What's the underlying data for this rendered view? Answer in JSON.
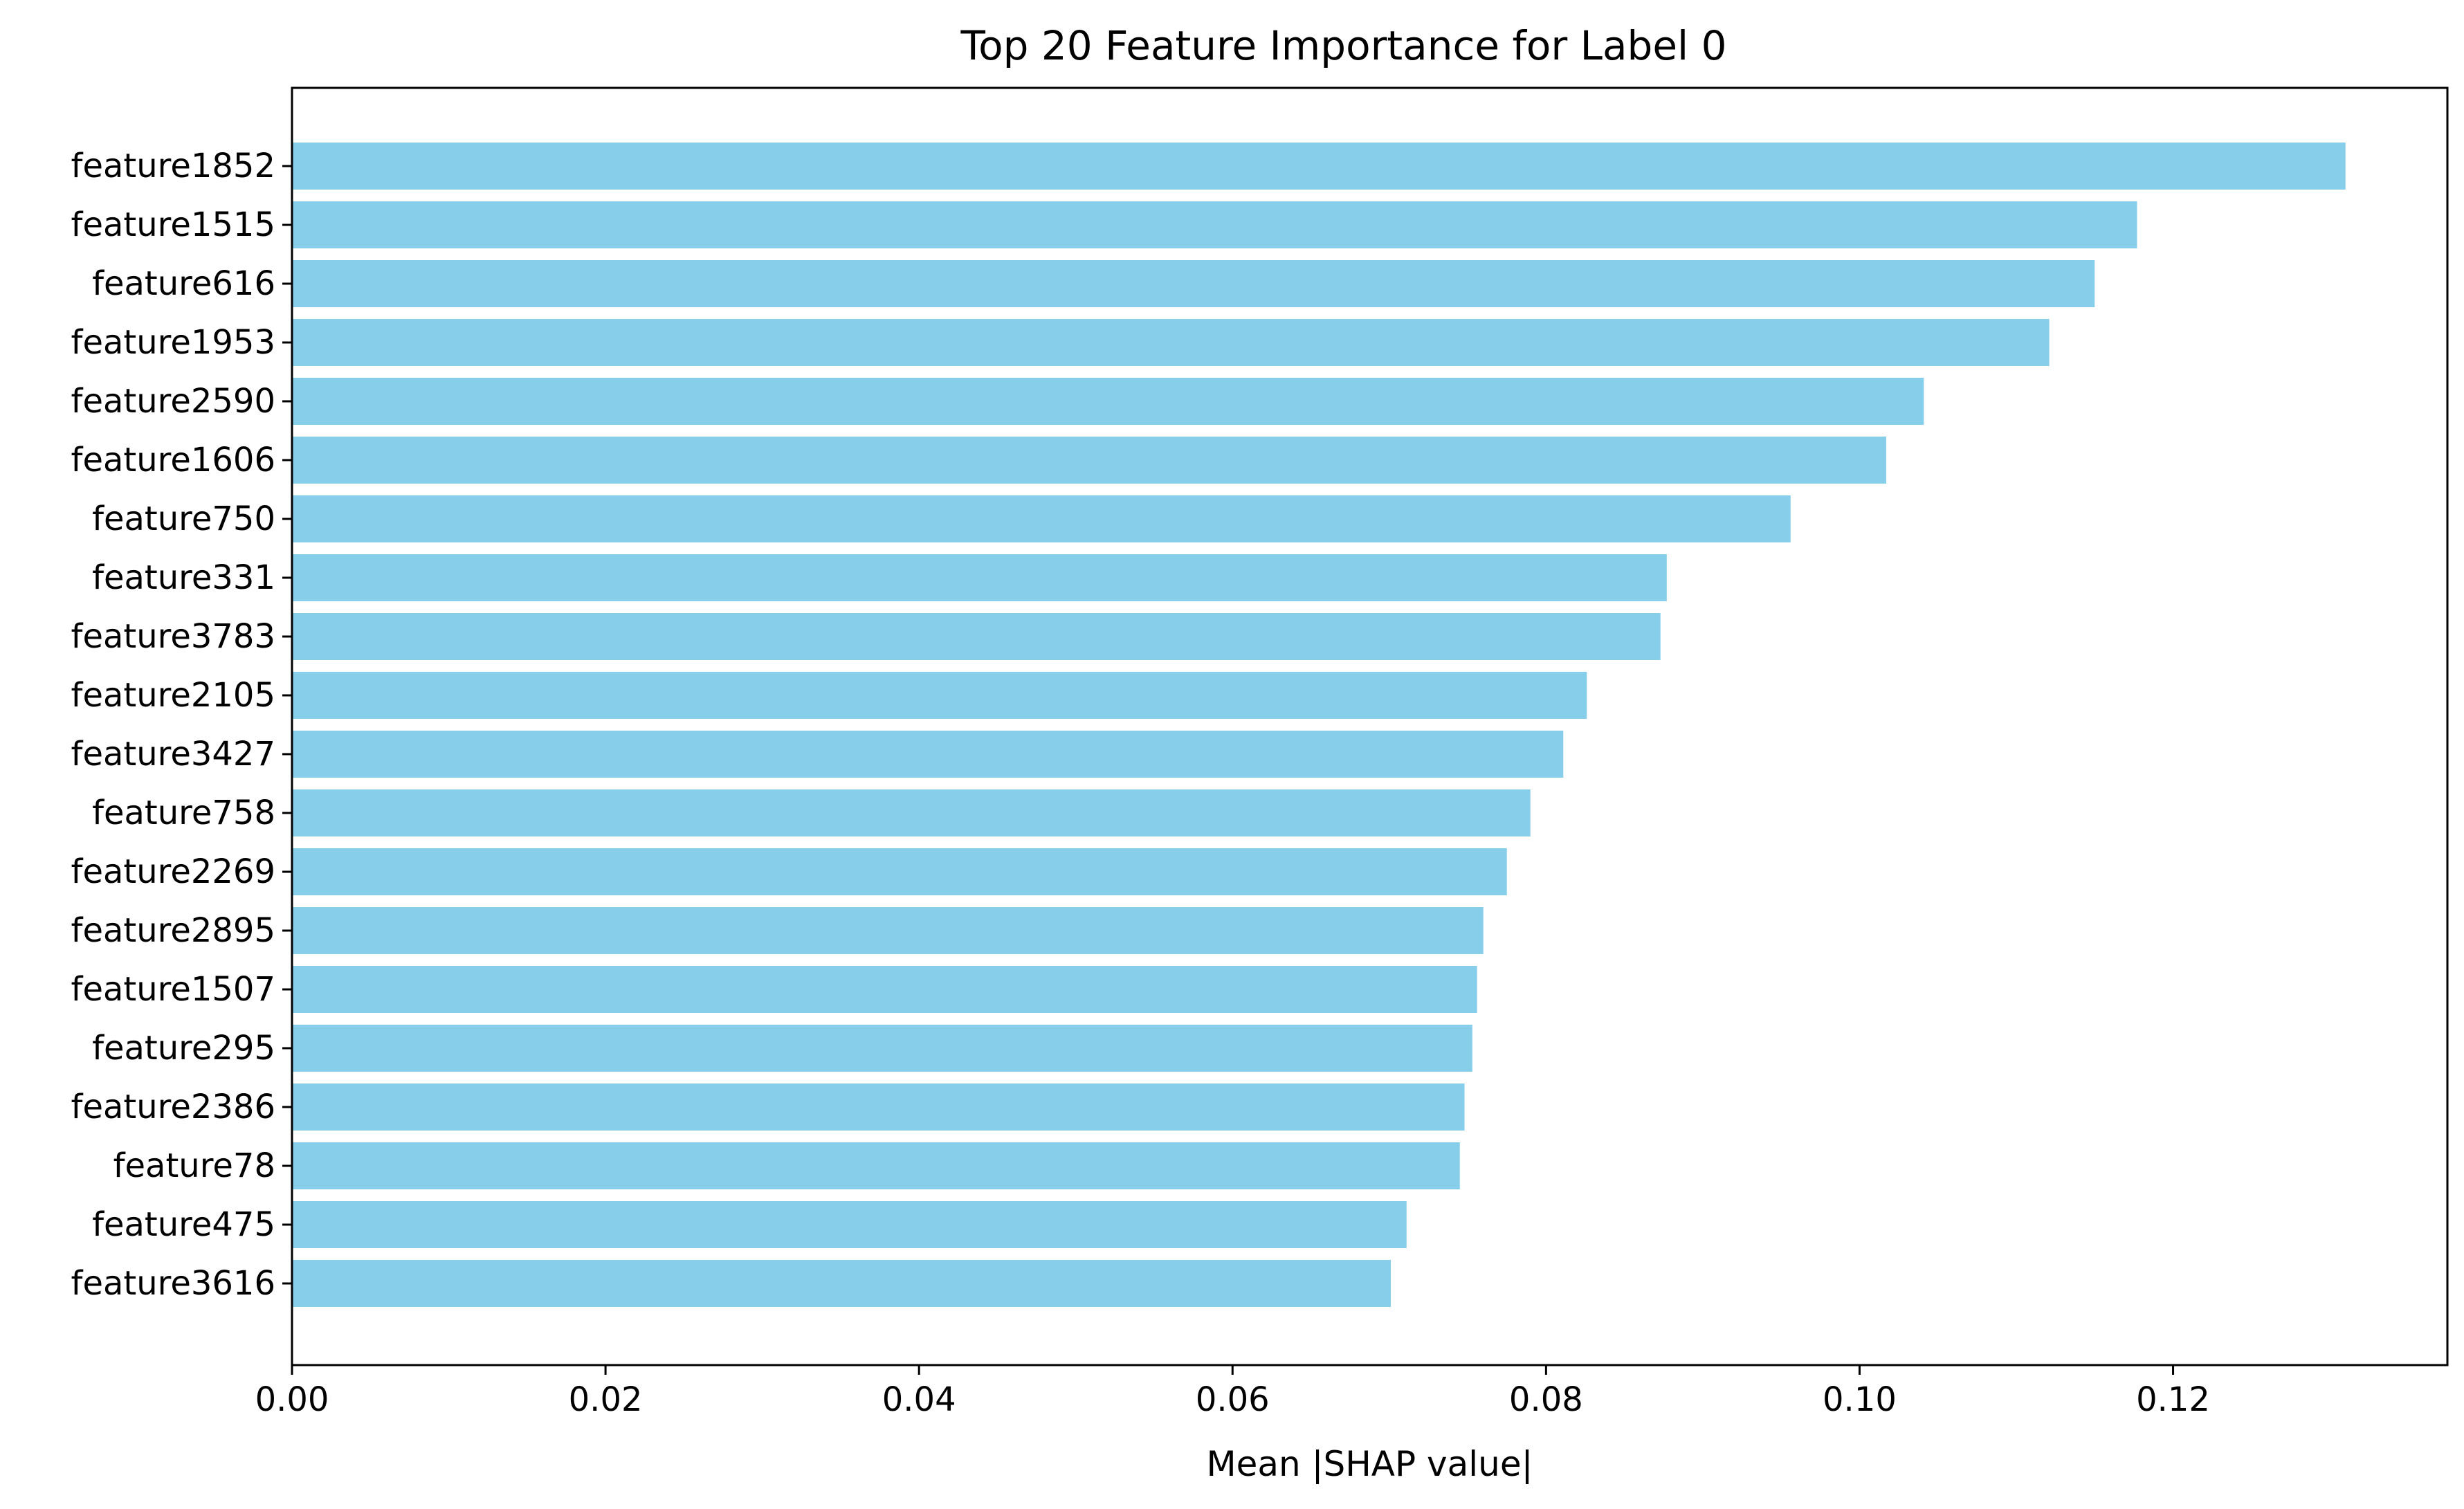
{
  "chart_data": {
    "type": "bar",
    "orientation": "horizontal",
    "title": "Top 20 Feature Importance for Label 0",
    "xlabel": "Mean |SHAP value|",
    "ylabel": "",
    "xlim": [
      0,
      0.1375
    ],
    "xticks": [
      0.0,
      0.02,
      0.04,
      0.06,
      0.08,
      0.1,
      0.12
    ],
    "xtick_labels": [
      "0.00",
      "0.02",
      "0.04",
      "0.06",
      "0.08",
      "0.10",
      "0.12"
    ],
    "grid": false,
    "bar_color": "#87ceeb",
    "categories": [
      "feature1852",
      "feature1515",
      "feature616",
      "feature1953",
      "feature2590",
      "feature1606",
      "feature750",
      "feature331",
      "feature3783",
      "feature2105",
      "feature3427",
      "feature758",
      "feature2269",
      "feature2895",
      "feature1507",
      "feature295",
      "feature2386",
      "feature78",
      "feature475",
      "feature3616"
    ],
    "values": [
      0.131,
      0.1177,
      0.115,
      0.1121,
      0.1041,
      0.1017,
      0.0956,
      0.0877,
      0.0873,
      0.0826,
      0.0811,
      0.079,
      0.0775,
      0.076,
      0.0756,
      0.0753,
      0.0748,
      0.0745,
      0.0711,
      0.0701
    ]
  }
}
